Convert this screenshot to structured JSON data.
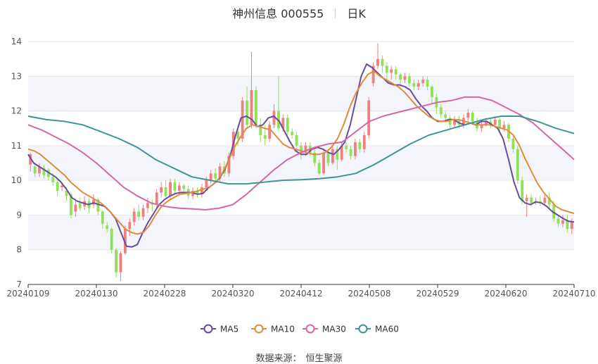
{
  "title": {
    "name": "神州信息 000555",
    "period": "日K"
  },
  "source": {
    "label": "数据来源：",
    "value": "恒生聚源"
  },
  "colors": {
    "up": "#f08080",
    "down": "#91e05a",
    "grid": "#e6e6e6",
    "band": "#f3f5fb",
    "MA5": "#6b4b9e",
    "MA10": "#e08c3a",
    "MA30": "#d766a8",
    "MA60": "#3f9494"
  },
  "chart_data": {
    "type": "candlestick",
    "ylim": [
      7,
      14
    ],
    "yticks": [
      "7",
      "8",
      "9",
      "10",
      "11",
      "12",
      "13",
      "14"
    ],
    "x_ticks": [
      "20240109",
      "20240130",
      "20240228",
      "20240320",
      "20240412",
      "20240508",
      "20240529",
      "20240620",
      "20240710"
    ],
    "legend": [
      "MA5",
      "MA10",
      "MA30",
      "MA60"
    ],
    "legend_position": "bottom",
    "candles": [
      [
        10.45,
        10.75,
        10.25,
        10.8
      ],
      [
        10.4,
        10.2,
        10.1,
        10.5
      ],
      [
        10.2,
        10.4,
        10.1,
        10.5
      ],
      [
        10.35,
        10.15,
        10.05,
        10.45
      ],
      [
        10.3,
        10.1,
        10.0,
        10.35
      ],
      [
        10.1,
        9.95,
        9.85,
        10.2
      ],
      [
        9.95,
        9.7,
        9.55,
        10.0
      ],
      [
        9.8,
        9.85,
        9.7,
        9.95
      ],
      [
        9.7,
        9.55,
        9.4,
        9.8
      ],
      [
        9.6,
        9.0,
        8.9,
        9.65
      ],
      [
        9.1,
        9.3,
        8.95,
        9.45
      ],
      [
        9.35,
        9.2,
        9.1,
        9.5
      ],
      [
        9.25,
        9.4,
        9.15,
        9.55
      ],
      [
        9.4,
        9.2,
        9.05,
        9.5
      ],
      [
        9.3,
        9.45,
        9.2,
        9.6
      ],
      [
        9.45,
        9.1,
        9.0,
        9.5
      ],
      [
        9.1,
        8.75,
        8.6,
        9.15
      ],
      [
        8.7,
        8.6,
        8.5,
        8.8
      ],
      [
        8.6,
        8.0,
        7.9,
        8.65
      ],
      [
        8.0,
        7.35,
        7.2,
        8.05
      ],
      [
        7.35,
        7.9,
        7.1,
        7.95
      ],
      [
        7.9,
        8.6,
        7.85,
        8.7
      ],
      [
        8.6,
        8.8,
        8.4,
        8.9
      ],
      [
        8.8,
        9.1,
        8.7,
        9.2
      ],
      [
        9.1,
        8.95,
        8.85,
        9.3
      ],
      [
        8.95,
        9.2,
        8.85,
        9.3
      ],
      [
        9.2,
        9.35,
        9.05,
        9.5
      ],
      [
        9.35,
        9.3,
        9.1,
        9.45
      ],
      [
        9.3,
        9.65,
        9.2,
        9.75
      ],
      [
        9.65,
        9.8,
        9.5,
        9.95
      ],
      [
        9.8,
        9.55,
        9.5,
        10.0
      ],
      [
        9.55,
        9.95,
        9.45,
        10.05
      ],
      [
        9.95,
        9.7,
        9.6,
        10.05
      ],
      [
        9.7,
        9.85,
        9.6,
        9.95
      ],
      [
        9.85,
        9.75,
        9.65,
        9.9
      ],
      [
        9.75,
        9.55,
        9.45,
        9.85
      ],
      [
        9.55,
        9.7,
        9.45,
        9.8
      ],
      [
        9.7,
        9.6,
        9.5,
        9.8
      ],
      [
        9.6,
        9.8,
        9.5,
        9.9
      ],
      [
        9.8,
        10.0,
        9.7,
        10.1
      ],
      [
        10.0,
        10.2,
        9.9,
        10.3
      ],
      [
        10.2,
        10.05,
        9.95,
        10.35
      ],
      [
        10.05,
        10.4,
        9.95,
        10.5
      ],
      [
        10.4,
        10.2,
        10.1,
        10.55
      ],
      [
        10.2,
        10.7,
        10.1,
        10.8
      ],
      [
        10.7,
        11.4,
        10.6,
        11.5
      ],
      [
        11.4,
        11.2,
        11.0,
        11.6
      ],
      [
        11.2,
        12.3,
        11.1,
        12.4
      ],
      [
        12.3,
        11.6,
        11.5,
        12.7
      ],
      [
        11.6,
        12.6,
        11.5,
        13.7
      ],
      [
        12.6,
        11.6,
        11.5,
        12.7
      ],
      [
        11.6,
        11.3,
        11.1,
        11.8
      ],
      [
        11.3,
        11.2,
        11.0,
        11.6
      ],
      [
        11.2,
        11.6,
        11.1,
        11.7
      ],
      [
        11.6,
        12.0,
        11.5,
        12.2
      ],
      [
        12.0,
        11.5,
        11.4,
        13.0
      ],
      [
        11.5,
        11.8,
        11.4,
        11.9
      ],
      [
        11.8,
        11.4,
        11.3,
        11.9
      ],
      [
        11.4,
        11.3,
        11.2,
        11.5
      ],
      [
        11.3,
        11.0,
        10.85,
        11.4
      ],
      [
        11.0,
        10.8,
        10.6,
        11.1
      ],
      [
        10.8,
        11.0,
        10.7,
        11.1
      ],
      [
        11.0,
        10.8,
        10.7,
        11.1
      ],
      [
        10.8,
        10.5,
        10.4,
        10.9
      ],
      [
        10.5,
        10.2,
        10.15,
        10.6
      ],
      [
        10.2,
        10.8,
        10.15,
        10.9
      ],
      [
        10.8,
        10.5,
        10.4,
        10.9
      ],
      [
        10.5,
        10.9,
        10.45,
        11.0
      ],
      [
        10.9,
        10.6,
        10.3,
        11.0
      ],
      [
        10.6,
        11.0,
        10.55,
        11.1
      ],
      [
        11.0,
        10.9,
        10.8,
        11.1
      ],
      [
        10.9,
        10.7,
        10.6,
        11.0
      ],
      [
        10.7,
        11.1,
        10.6,
        11.2
      ],
      [
        11.1,
        10.9,
        10.8,
        11.2
      ],
      [
        10.9,
        11.3,
        10.8,
        11.4
      ],
      [
        11.3,
        12.3,
        11.2,
        12.4
      ],
      [
        12.8,
        13.3,
        12.7,
        13.4
      ],
      [
        13.3,
        13.5,
        13.2,
        13.95
      ],
      [
        13.5,
        13.3,
        13.1,
        13.6
      ],
      [
        13.3,
        13.1,
        12.9,
        13.4
      ],
      [
        13.1,
        13.2,
        12.9,
        13.3
      ],
      [
        13.2,
        13.05,
        12.9,
        13.3
      ],
      [
        13.05,
        12.9,
        12.7,
        13.1
      ],
      [
        12.9,
        13.0,
        12.8,
        13.1
      ],
      [
        13.0,
        12.8,
        12.7,
        13.1
      ],
      [
        12.8,
        12.7,
        12.6,
        12.9
      ],
      [
        12.7,
        12.8,
        12.6,
        12.9
      ],
      [
        12.8,
        12.9,
        12.7,
        13.0
      ],
      [
        12.9,
        12.7,
        12.6,
        13.0
      ],
      [
        12.7,
        12.4,
        12.2,
        12.75
      ],
      [
        12.4,
        12.1,
        11.9,
        12.5
      ],
      [
        12.1,
        11.9,
        11.8,
        12.2
      ],
      [
        11.9,
        11.8,
        11.7,
        12.0
      ],
      [
        11.8,
        11.6,
        11.5,
        11.9
      ],
      [
        11.6,
        11.75,
        11.5,
        11.85
      ],
      [
        11.75,
        11.6,
        11.5,
        11.85
      ],
      [
        11.6,
        11.8,
        11.5,
        11.9
      ],
      [
        11.8,
        11.95,
        11.7,
        12.05
      ],
      [
        11.95,
        11.7,
        11.6,
        12.0
      ],
      [
        11.7,
        11.5,
        11.4,
        11.8
      ],
      [
        11.5,
        11.6,
        11.4,
        11.7
      ],
      [
        11.6,
        11.7,
        11.55,
        11.8
      ],
      [
        11.7,
        11.6,
        11.5,
        11.8
      ],
      [
        11.6,
        11.75,
        11.55,
        11.85
      ],
      [
        11.75,
        11.5,
        11.4,
        11.8
      ],
      [
        11.5,
        11.6,
        11.4,
        11.7
      ],
      [
        11.6,
        11.2,
        11.1,
        11.65
      ],
      [
        11.2,
        10.9,
        10.8,
        11.3
      ],
      [
        10.9,
        10.0,
        9.9,
        11.0
      ],
      [
        10.0,
        9.4,
        9.3,
        10.1
      ],
      [
        9.4,
        9.5,
        8.95,
        9.6
      ],
      [
        9.5,
        9.35,
        9.25,
        9.6
      ],
      [
        9.35,
        9.4,
        9.3,
        9.5
      ],
      [
        9.4,
        9.35,
        9.25,
        9.55
      ],
      [
        9.35,
        9.5,
        9.3,
        9.6
      ],
      [
        9.5,
        9.3,
        9.2,
        9.65
      ],
      [
        9.3,
        8.9,
        8.8,
        9.4
      ],
      [
        8.9,
        8.75,
        8.65,
        9.0
      ],
      [
        8.75,
        8.85,
        8.65,
        9.0
      ],
      [
        8.85,
        8.6,
        8.5,
        9.0
      ],
      [
        8.6,
        8.8,
        8.45,
        8.9
      ]
    ],
    "series": [
      {
        "name": "MA5",
        "values": [
          10.75,
          10.5,
          10.4,
          10.3,
          10.2,
          10.1,
          9.95,
          9.75,
          9.5,
          9.4,
          9.35,
          9.3,
          9.35,
          9.3,
          9.25,
          9.1,
          8.9,
          8.5,
          8.1,
          8.08,
          8.15,
          8.5,
          8.8,
          9.05,
          9.3,
          9.45,
          9.55,
          9.62,
          9.65,
          9.65,
          9.65,
          9.6,
          9.62,
          9.78,
          9.9,
          10.05,
          10.3,
          10.7,
          11.3,
          11.8,
          11.85,
          11.75,
          11.55,
          11.6,
          11.8,
          11.85,
          11.7,
          11.4,
          11.1,
          10.85,
          10.75,
          10.75,
          10.9,
          10.95,
          10.9,
          10.8,
          10.75,
          10.9,
          11.1,
          11.6,
          12.3,
          13.0,
          13.35,
          13.25,
          13.1,
          12.95,
          12.8,
          12.75,
          12.75,
          12.7,
          12.6,
          12.35,
          12.15,
          12.0,
          11.8,
          11.7,
          11.7,
          11.75,
          11.75,
          11.65,
          11.6,
          11.65,
          11.6,
          11.7,
          11.7,
          11.6,
          11.5,
          11.2,
          10.6,
          9.95,
          9.5,
          9.35,
          9.3,
          9.38,
          9.35,
          9.25,
          9.1,
          9.0,
          8.9,
          8.82,
          8.8
        ]
      },
      {
        "name": "MA10",
        "values": [
          10.9,
          10.85,
          10.75,
          10.6,
          10.45,
          10.3,
          10.15,
          9.95,
          9.8,
          9.65,
          9.55,
          9.45,
          9.35,
          9.2,
          9.0,
          8.8,
          8.6,
          8.5,
          8.45,
          8.5,
          8.7,
          9.0,
          9.25,
          9.4,
          9.5,
          9.6,
          9.62,
          9.65,
          9.7,
          9.75,
          9.82,
          9.95,
          10.2,
          10.55,
          10.95,
          11.25,
          11.5,
          11.6,
          11.55,
          11.5,
          11.45,
          11.25,
          11.05,
          10.95,
          10.9,
          10.85,
          10.8,
          10.75,
          10.75,
          10.8,
          10.95,
          11.2,
          11.6,
          12.1,
          12.5,
          12.8,
          13.05,
          13.15,
          13.0,
          12.9,
          12.8,
          12.7,
          12.55,
          12.35,
          12.15,
          12.0,
          11.85,
          11.75,
          11.7,
          11.7,
          11.75,
          11.75,
          11.7,
          11.65,
          11.6,
          11.6,
          11.6,
          11.55,
          11.5,
          11.45,
          11.3,
          11.0,
          10.6,
          10.25,
          9.9,
          9.65,
          9.45,
          9.25,
          9.15,
          9.1,
          9.05
        ]
      },
      {
        "name": "MA30",
        "values": [
          11.6,
          11.45,
          11.25,
          11.05,
          10.8,
          10.5,
          10.15,
          9.8,
          9.55,
          9.35,
          9.25,
          9.2,
          9.18,
          9.15,
          9.2,
          9.3,
          9.6,
          9.95,
          10.3,
          10.6,
          10.8,
          10.95,
          11.05,
          11.1,
          11.4,
          11.7,
          11.85,
          11.95,
          12.05,
          12.15,
          12.25,
          12.3,
          12.4,
          12.4,
          12.3,
          12.1,
          11.9,
          11.65,
          11.3,
          10.95,
          10.6
        ]
      },
      {
        "name": "MA60",
        "values": [
          11.85,
          11.75,
          11.7,
          11.6,
          11.4,
          11.2,
          10.95,
          10.6,
          10.35,
          10.1,
          10.0,
          9.9,
          9.9,
          9.95,
          10.0,
          10.02,
          10.05,
          10.1,
          10.2,
          10.45,
          10.75,
          11.05,
          11.3,
          11.45,
          11.6,
          11.75,
          11.85,
          11.85,
          11.7,
          11.5,
          11.35
        ]
      }
    ]
  }
}
